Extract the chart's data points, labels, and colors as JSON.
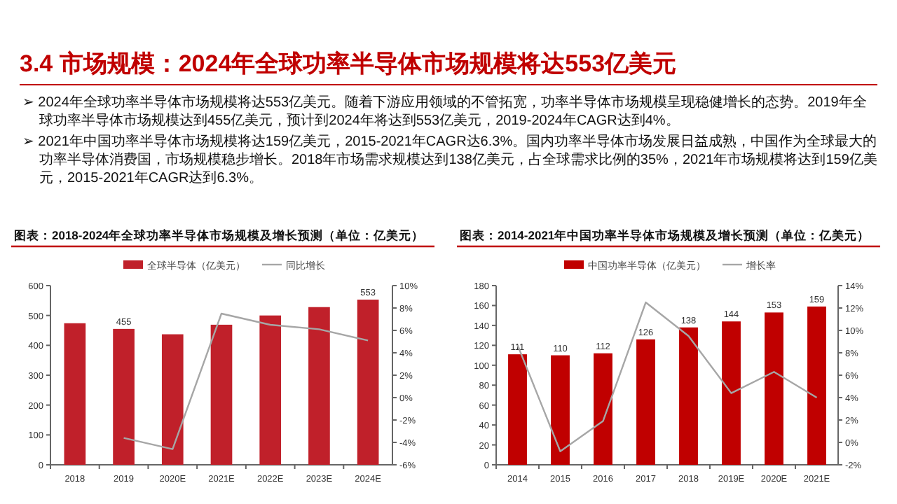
{
  "chart_data": [
    {
      "type": "other",
      "title": "3.4 市场规模：2024年全球功率半导体市场规模将达553亿美元",
      "annotations": [
        "➢ 2024年全球功率半导体市场规模将达553亿美元。随着下游应用领域的不管拓宽，功率半导体市场规模呈现稳健增长的态势。2019年全球功率半导体市场规模达到455亿美元，预计到2024年将达到553亿美元，2019-2024年CAGR达到4%。",
        "➢ 2021年中国功率半导体市场规模将达159亿美元，2015-2021年CAGR达6.3%。国内功率半导体市场发展日益成熟，中国作为全球最大的功率半导体消费国，市场规模稳步增长。2018年市场需求规模达到138亿美元，占全球需求比例的35%，2021年市场规模将达到159亿美元，2015-2021年CAGR达到6.3%。"
      ]
    },
    {
      "type": "bar",
      "title": "图表：2018-2024年全球功率半导体市场规模及增长预测（单位：亿美元）",
      "categories": [
        "2018",
        "2019",
        "2020E",
        "2021E",
        "2022E",
        "2023E",
        "2024E"
      ],
      "series": [
        {
          "name": "全球半导体（亿美元）",
          "type": "bar",
          "color": "#c0202a",
          "values": [
            474,
            455,
            437,
            469,
            500,
            528,
            553
          ],
          "value_labels": [
            null,
            "455",
            null,
            null,
            null,
            null,
            "553"
          ]
        },
        {
          "name": "同比增长",
          "type": "line",
          "axis": "y2",
          "color": "#a6a6a6",
          "values": [
            null,
            -3.6,
            -4.6,
            7.5,
            6.5,
            6.1,
            5.1
          ]
        }
      ],
      "ylim": [
        0,
        600
      ],
      "yticks": [
        0,
        100,
        200,
        300,
        400,
        500,
        600
      ],
      "y2lim": [
        -6,
        10
      ],
      "y2ticks": [
        {
          "value": -6,
          "label": "-6%"
        },
        {
          "value": -4,
          "label": "-4%"
        },
        {
          "value": -2,
          "label": "-2%"
        },
        {
          "value": 0,
          "label": "0%"
        },
        {
          "value": 2,
          "label": "2%"
        },
        {
          "value": 4,
          "label": "4%"
        },
        {
          "value": 6,
          "label": "6%"
        },
        {
          "value": 8,
          "label": "8%"
        },
        {
          "value": 10,
          "label": "10%"
        }
      ],
      "legend": "top"
    },
    {
      "type": "bar",
      "title": "图表：2014-2021年中国功率半导体市场规模及增长预测（单位：亿美元）",
      "categories": [
        "2014",
        "2015",
        "2016",
        "2017",
        "2018",
        "2019E",
        "2020E",
        "2021E"
      ],
      "series": [
        {
          "name": "中国功率半导体（亿美元）",
          "type": "bar",
          "color": "#c00000",
          "values": [
            111,
            110,
            112,
            126,
            138,
            144,
            153,
            159
          ],
          "value_labels": [
            "111",
            "110",
            "112",
            "126",
            "138",
            "144",
            "153",
            "159"
          ]
        },
        {
          "name": "增长率",
          "type": "line",
          "axis": "y2",
          "color": "#a6a6a6",
          "values": [
            8.7,
            -0.8,
            1.9,
            12.5,
            9.5,
            4.4,
            6.3,
            4.0
          ]
        }
      ],
      "ylim": [
        0,
        180
      ],
      "yticks": [
        0,
        20,
        40,
        60,
        80,
        100,
        120,
        140,
        160,
        180
      ],
      "y2lim": [
        -2,
        14
      ],
      "y2ticks": [
        {
          "value": -2,
          "label": "-2%"
        },
        {
          "value": 0,
          "label": "0%"
        },
        {
          "value": 2,
          "label": "2%"
        },
        {
          "value": 4,
          "label": "4%"
        },
        {
          "value": 6,
          "label": "6%"
        },
        {
          "value": 8,
          "label": "8%"
        },
        {
          "value": 10,
          "label": "10%"
        },
        {
          "value": 12,
          "label": "12%"
        },
        {
          "value": 14,
          "label": "14%"
        }
      ],
      "legend": "top"
    }
  ]
}
